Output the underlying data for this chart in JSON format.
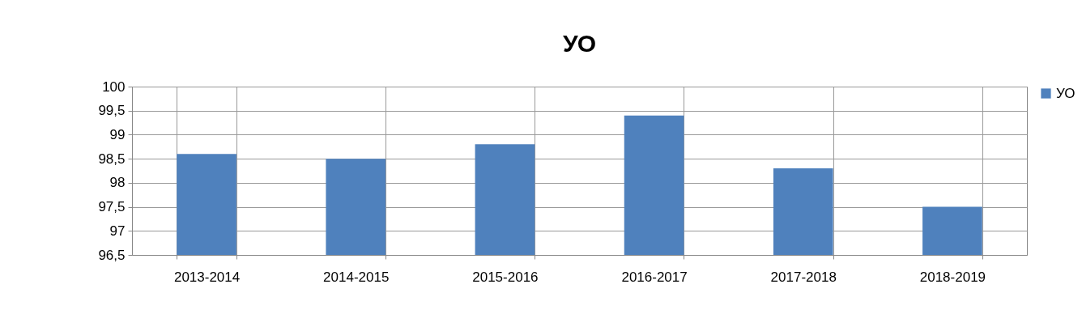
{
  "chart_data": {
    "type": "bar",
    "title": "УО",
    "categories": [
      "2013-2014",
      "2014-2015",
      "2015-2016",
      "2016-2017",
      "2017-2018",
      "2018-2019"
    ],
    "series": [
      {
        "name": "УО",
        "color": "#4f81bd",
        "values": [
          98.6,
          98.5,
          98.8,
          99.4,
          98.3,
          97.5
        ]
      }
    ],
    "ylim": [
      96.5,
      100
    ],
    "yticks": [
      {
        "value": 96.5,
        "label": "96,5"
      },
      97,
      {
        "value": 97.5,
        "label": "97,5"
      },
      98,
      {
        "value": 98.5,
        "label": "98,5"
      },
      99,
      {
        "value": 99.5,
        "label": "99,5"
      },
      100
    ],
    "grid": true,
    "legend": "right"
  }
}
